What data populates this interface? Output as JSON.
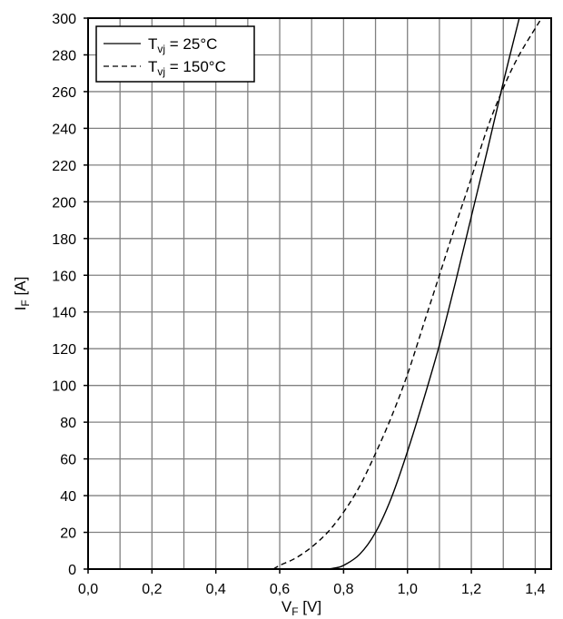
{
  "chart_data": {
    "type": "line",
    "xlabel": "V",
    "xlabel_sub": "F",
    "xlabel_unit": " [V]",
    "ylabel": "I",
    "ylabel_sub": "F",
    "ylabel_unit": " [A]",
    "xlim": [
      0.0,
      1.45
    ],
    "ylim": [
      0,
      300
    ],
    "x_ticks": [
      0.0,
      0.2,
      0.4,
      0.6,
      0.8,
      1.0,
      1.2,
      1.4
    ],
    "x_tick_labels": [
      "0,0",
      "0,2",
      "0,4",
      "0,6",
      "0,8",
      "1,0",
      "1,2",
      "1,4"
    ],
    "x_minor_step": 0.1,
    "y_ticks": [
      0,
      20,
      40,
      60,
      80,
      100,
      120,
      140,
      160,
      180,
      200,
      220,
      240,
      260,
      280,
      300
    ],
    "y_tick_labels": [
      "0",
      "20",
      "40",
      "60",
      "80",
      "100",
      "120",
      "140",
      "160",
      "180",
      "200",
      "220",
      "240",
      "260",
      "280",
      "300"
    ],
    "grid": true,
    "legend_position": "top-left",
    "series": [
      {
        "legend_prefix": "T",
        "legend_sub": "vj",
        "legend_suffix": " = 25°C",
        "dash": "solid",
        "x": [
          0.75,
          0.77,
          0.8,
          0.85,
          0.9,
          0.95,
          1.0,
          1.05,
          1.1,
          1.15,
          1.2,
          1.25,
          1.3,
          1.35
        ],
        "y": [
          0,
          0.5,
          2,
          8,
          20,
          39,
          64,
          92,
          122,
          156,
          192,
          228,
          265,
          300
        ]
      },
      {
        "legend_prefix": "T",
        "legend_sub": "vj",
        "legend_suffix": " = 150°C",
        "dash": "dashed",
        "x": [
          0.58,
          0.6,
          0.65,
          0.7,
          0.75,
          0.8,
          0.85,
          0.9,
          0.95,
          1.0,
          1.05,
          1.1,
          1.15,
          1.2,
          1.25,
          1.3,
          1.35,
          1.42
        ],
        "y": [
          0,
          2,
          6,
          12,
          20,
          31,
          45,
          63,
          83,
          106,
          133,
          160,
          187,
          213,
          240,
          262,
          280,
          300
        ]
      }
    ]
  }
}
